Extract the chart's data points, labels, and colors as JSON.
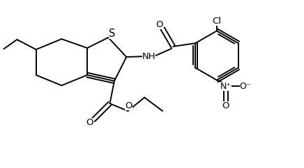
{
  "background_color": "#ffffff",
  "line_color": "#000000",
  "line_width": 1.4,
  "font_size": 9.5,
  "atoms": {
    "S_label": "S",
    "Cl_label": "Cl",
    "O_label": "O",
    "NH_label": "NH",
    "N_label": "N",
    "Nplus_label": "N⁺",
    "Ominus_label": "O⁻"
  }
}
